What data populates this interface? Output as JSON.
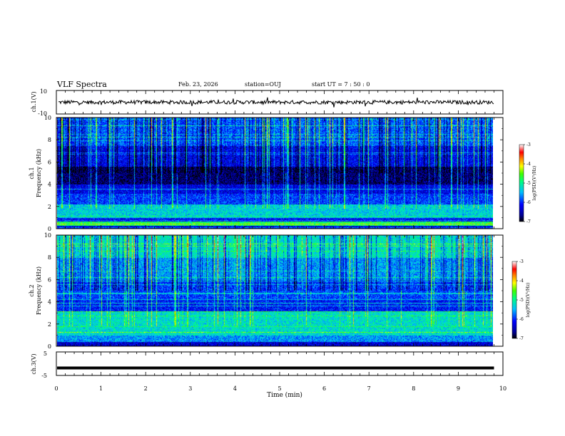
{
  "header": {
    "title": "VLF Spectra",
    "date": "Feb. 23, 2026",
    "station": "station=OUJ",
    "start_ut": "start  UT =   7 : 50 : 0"
  },
  "chart_data": [
    {
      "type": "line",
      "name": "ch1-waveform",
      "ylabel": "ch.1(V)",
      "ylim": [
        -10,
        10
      ],
      "yticklabels": [
        "10",
        "-10"
      ],
      "baseline": 0
    },
    {
      "type": "heatmap",
      "name": "ch1-spectrogram",
      "ylabel_top": "ch.1",
      "ylabel": "Frequency (kHz)",
      "ylim": [
        0,
        10
      ],
      "yticklabels": [
        "0",
        "2",
        "4",
        "6",
        "8",
        "10"
      ],
      "colorbar": {
        "label": "log(PSD)(V²/Hz)",
        "ticklabels": [
          "-3",
          "-4",
          "-5",
          "-6",
          "-7"
        ],
        "range": [
          -7,
          -3
        ]
      }
    },
    {
      "type": "heatmap",
      "name": "ch2-spectrogram",
      "ylabel_top": "ch.2",
      "ylabel": "Frequency (kHz)",
      "ylim": [
        0,
        10
      ],
      "yticklabels": [
        "0",
        "2",
        "4",
        "6",
        "8",
        "10"
      ],
      "colorbar": {
        "label": "log(PSD)(V²/Hz)",
        "ticklabels": [
          "-3",
          "-4",
          "-5",
          "-6",
          "-7"
        ],
        "range": [
          -7,
          -3
        ]
      }
    },
    {
      "type": "line",
      "name": "ch3-waveform",
      "ylabel": "ch.3(V)",
      "ylim": [
        -5,
        5
      ],
      "yticklabels": [
        "5",
        "-5"
      ],
      "baseline": -1.8
    }
  ],
  "xaxis": {
    "label": "Time (min)",
    "xlim": [
      0,
      10
    ],
    "ticklabels": [
      "0",
      "1",
      "2",
      "3",
      "4",
      "5",
      "6",
      "7",
      "8",
      "9",
      "10"
    ],
    "data_end": 9.8
  }
}
